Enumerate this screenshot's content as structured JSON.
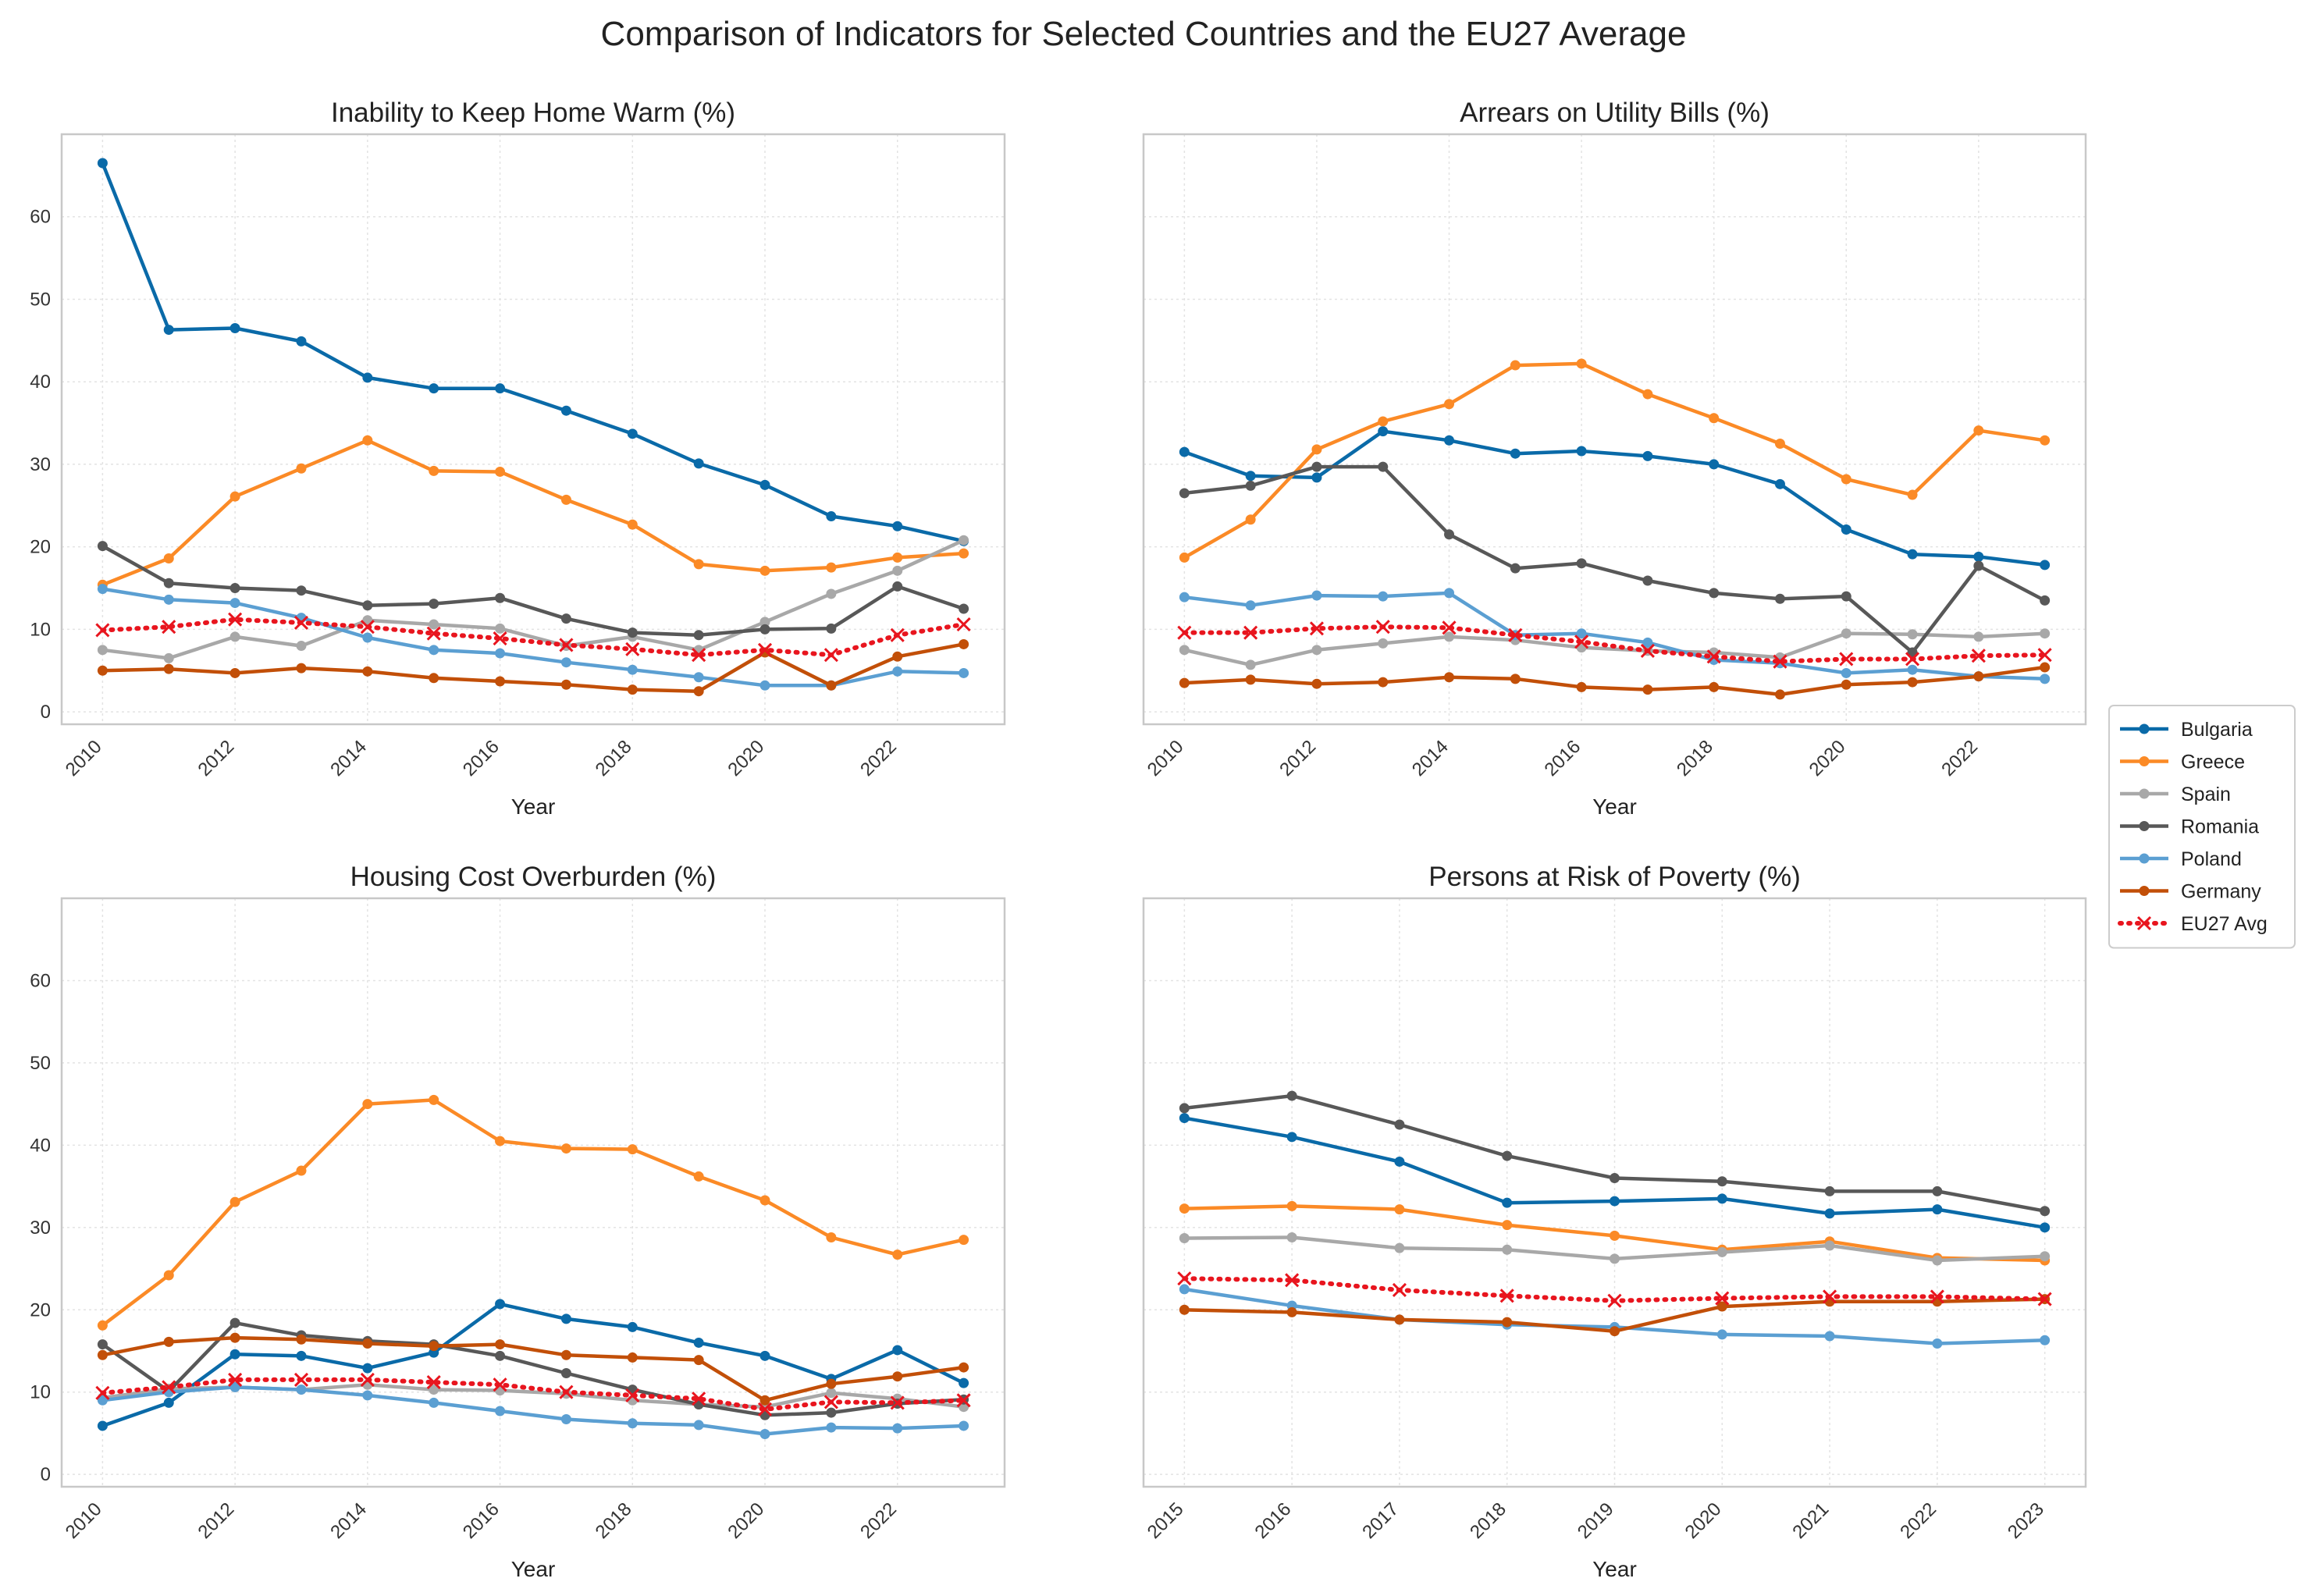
{
  "figure_title": "Comparison of Indicators for Selected Countries and the EU27 Average",
  "legend": {
    "items": [
      {
        "label": "Bulgaria",
        "color": "#0a6aa8"
      },
      {
        "label": "Greece",
        "color": "#fb8a26"
      },
      {
        "label": "Spain",
        "color": "#a8a8a8"
      },
      {
        "label": "Romania",
        "color": "#585858"
      },
      {
        "label": "Poland",
        "color": "#5b9fd2"
      },
      {
        "label": "Germany",
        "color": "#c24f08"
      },
      {
        "label": "EU27 Avg",
        "color": "#e8151e"
      }
    ]
  },
  "chart_data": [
    {
      "type": "line",
      "title": "Inability to Keep Home Warm (%)",
      "xlabel": "Year",
      "ylabel": "",
      "x": [
        2010,
        2011,
        2012,
        2013,
        2014,
        2015,
        2016,
        2017,
        2018,
        2019,
        2020,
        2021,
        2022,
        2023
      ],
      "xticks": [
        "2010",
        "2012",
        "2014",
        "2016",
        "2018",
        "2020",
        "2022"
      ],
      "yticks": [
        "0",
        "10",
        "20",
        "30",
        "40",
        "50",
        "60"
      ],
      "ylim": [
        -1.5,
        70
      ],
      "grid": true,
      "series": [
        {
          "name": "Bulgaria",
          "values": [
            66.5,
            46.3,
            46.5,
            44.9,
            40.5,
            39.2,
            39.2,
            36.5,
            33.7,
            30.1,
            27.5,
            23.7,
            22.5,
            20.7
          ]
        },
        {
          "name": "Greece",
          "values": [
            15.4,
            18.6,
            26.1,
            29.5,
            32.9,
            29.2,
            29.1,
            25.7,
            22.7,
            17.9,
            17.1,
            17.5,
            18.7,
            19.2
          ]
        },
        {
          "name": "Spain",
          "values": [
            7.5,
            6.5,
            9.1,
            8.0,
            11.1,
            10.6,
            10.1,
            8.0,
            9.1,
            7.5,
            10.9,
            14.3,
            17.1,
            20.8
          ]
        },
        {
          "name": "Romania",
          "values": [
            20.1,
            15.6,
            15.0,
            14.7,
            12.9,
            13.1,
            13.8,
            11.3,
            9.6,
            9.3,
            10.0,
            10.1,
            15.2,
            12.5
          ]
        },
        {
          "name": "Poland",
          "values": [
            14.9,
            13.6,
            13.2,
            11.4,
            9.0,
            7.5,
            7.1,
            6.0,
            5.1,
            4.2,
            3.2,
            3.2,
            4.9,
            4.7
          ]
        },
        {
          "name": "Germany",
          "values": [
            5.0,
            5.2,
            4.7,
            5.3,
            4.9,
            4.1,
            3.7,
            3.3,
            2.7,
            2.5,
            7.2,
            3.2,
            6.7,
            8.2
          ]
        },
        {
          "name": "EU27 Avg",
          "values": [
            9.9,
            10.3,
            11.2,
            10.8,
            10.3,
            9.5,
            8.9,
            8.1,
            7.6,
            6.9,
            7.5,
            6.9,
            9.3,
            10.6
          ]
        }
      ]
    },
    {
      "type": "line",
      "title": "Arrears on Utility Bills (%)",
      "xlabel": "Year",
      "ylabel": "",
      "x": [
        2010,
        2011,
        2012,
        2013,
        2014,
        2015,
        2016,
        2017,
        2018,
        2019,
        2020,
        2021,
        2022,
        2023
      ],
      "xticks": [
        "2010",
        "2012",
        "2014",
        "2016",
        "2018",
        "2020",
        "2022"
      ],
      "yticks": [],
      "ylim": [
        -1.5,
        70
      ],
      "grid": true,
      "series": [
        {
          "name": "Bulgaria",
          "values": [
            31.5,
            28.6,
            28.4,
            34.0,
            32.9,
            31.3,
            31.6,
            31.0,
            30.0,
            27.6,
            22.1,
            19.1,
            18.8,
            17.8
          ]
        },
        {
          "name": "Greece",
          "values": [
            18.7,
            23.3,
            31.8,
            35.2,
            37.3,
            42.0,
            42.2,
            38.5,
            35.6,
            32.5,
            28.2,
            26.3,
            34.1,
            32.9
          ]
        },
        {
          "name": "Spain",
          "values": [
            7.5,
            5.7,
            7.5,
            8.3,
            9.1,
            8.7,
            7.8,
            7.4,
            7.2,
            6.6,
            9.5,
            9.4,
            9.1,
            9.5
          ]
        },
        {
          "name": "Romania",
          "values": [
            26.5,
            27.4,
            29.7,
            29.7,
            21.5,
            17.4,
            18.0,
            15.9,
            14.4,
            13.7,
            14.0,
            7.2,
            17.7,
            13.5
          ]
        },
        {
          "name": "Poland",
          "values": [
            13.9,
            12.9,
            14.1,
            14.0,
            14.4,
            9.3,
            9.5,
            8.4,
            6.3,
            5.9,
            4.7,
            5.1,
            4.3,
            4.0
          ]
        },
        {
          "name": "Germany",
          "values": [
            3.5,
            3.9,
            3.4,
            3.6,
            4.2,
            4.0,
            3.0,
            2.7,
            3.0,
            2.1,
            3.3,
            3.6,
            4.3,
            5.4
          ]
        },
        {
          "name": "EU27 Avg",
          "values": [
            9.6,
            9.6,
            10.1,
            10.3,
            10.2,
            9.3,
            8.5,
            7.4,
            6.7,
            6.1,
            6.4,
            6.4,
            6.8,
            6.9
          ]
        }
      ]
    },
    {
      "type": "line",
      "title": "Housing Cost Overburden (%)",
      "xlabel": "Year",
      "ylabel": "",
      "x": [
        2010,
        2011,
        2012,
        2013,
        2014,
        2015,
        2016,
        2017,
        2018,
        2019,
        2020,
        2021,
        2022,
        2023
      ],
      "xticks": [
        "2010",
        "2012",
        "2014",
        "2016",
        "2018",
        "2020",
        "2022"
      ],
      "yticks": [
        "0",
        "10",
        "20",
        "30",
        "40",
        "50",
        "60"
      ],
      "ylim": [
        -1.5,
        70
      ],
      "grid": true,
      "series": [
        {
          "name": "Bulgaria",
          "values": [
            5.9,
            8.7,
            14.6,
            14.4,
            12.9,
            14.8,
            20.7,
            18.9,
            17.9,
            16.0,
            14.4,
            11.6,
            15.1,
            11.1
          ]
        },
        {
          "name": "Greece",
          "values": [
            18.1,
            24.2,
            33.1,
            36.9,
            45.0,
            45.5,
            40.5,
            39.6,
            39.5,
            36.2,
            33.3,
            28.8,
            26.7,
            28.5
          ]
        },
        {
          "name": "Spain",
          "values": [
            9.3,
            10.4,
            10.6,
            10.3,
            10.9,
            10.3,
            10.2,
            9.8,
            9.0,
            8.5,
            8.2,
            9.9,
            9.2,
            8.2
          ]
        },
        {
          "name": "Romania",
          "values": [
            15.8,
            10.1,
            18.4,
            16.9,
            16.2,
            15.8,
            14.4,
            12.3,
            10.3,
            8.5,
            7.2,
            7.5,
            8.6,
            9.1
          ]
        },
        {
          "name": "Poland",
          "values": [
            9.0,
            10.0,
            10.6,
            10.3,
            9.6,
            8.7,
            7.7,
            6.7,
            6.2,
            6.0,
            4.9,
            5.7,
            5.6,
            5.9
          ]
        },
        {
          "name": "Germany",
          "values": [
            14.5,
            16.1,
            16.6,
            16.4,
            15.9,
            15.6,
            15.8,
            14.5,
            14.2,
            13.9,
            9.0,
            11.0,
            11.9,
            13.0
          ]
        },
        {
          "name": "EU27 Avg",
          "values": [
            9.9,
            10.6,
            11.5,
            11.5,
            11.5,
            11.2,
            10.9,
            10.0,
            9.6,
            9.2,
            7.9,
            8.8,
            8.7,
            9.0
          ]
        }
      ]
    },
    {
      "type": "line",
      "title": "Persons at Risk of Poverty (%)",
      "xlabel": "Year",
      "ylabel": "",
      "x": [
        2015,
        2016,
        2017,
        2018,
        2019,
        2020,
        2021,
        2022,
        2023
      ],
      "xticks": [
        "2015",
        "2016",
        "2017",
        "2018",
        "2019",
        "2020",
        "2021",
        "2022",
        "2023"
      ],
      "yticks": [],
      "ylim": [
        -1.5,
        70
      ],
      "grid": true,
      "series": [
        {
          "name": "Bulgaria",
          "values": [
            43.3,
            41.0,
            38.0,
            33.0,
            33.2,
            33.5,
            31.7,
            32.2,
            30.0
          ]
        },
        {
          "name": "Greece",
          "values": [
            32.3,
            32.6,
            32.2,
            30.3,
            29.0,
            27.3,
            28.3,
            26.3,
            26.0
          ]
        },
        {
          "name": "Spain",
          "values": [
            28.7,
            28.8,
            27.5,
            27.3,
            26.2,
            27.0,
            27.8,
            26.0,
            26.5
          ]
        },
        {
          "name": "Romania",
          "values": [
            44.5,
            46.0,
            42.5,
            38.7,
            36.0,
            35.6,
            34.4,
            34.4,
            32.0
          ]
        },
        {
          "name": "Poland",
          "values": [
            22.5,
            20.5,
            18.8,
            18.2,
            17.9,
            17.0,
            16.8,
            15.9,
            16.3
          ]
        },
        {
          "name": "Germany",
          "values": [
            20.0,
            19.7,
            18.8,
            18.5,
            17.4,
            20.4,
            21.0,
            21.0,
            21.3
          ]
        },
        {
          "name": "EU27 Avg",
          "values": [
            23.8,
            23.6,
            22.4,
            21.7,
            21.1,
            21.4,
            21.6,
            21.6,
            21.3
          ]
        }
      ]
    }
  ]
}
